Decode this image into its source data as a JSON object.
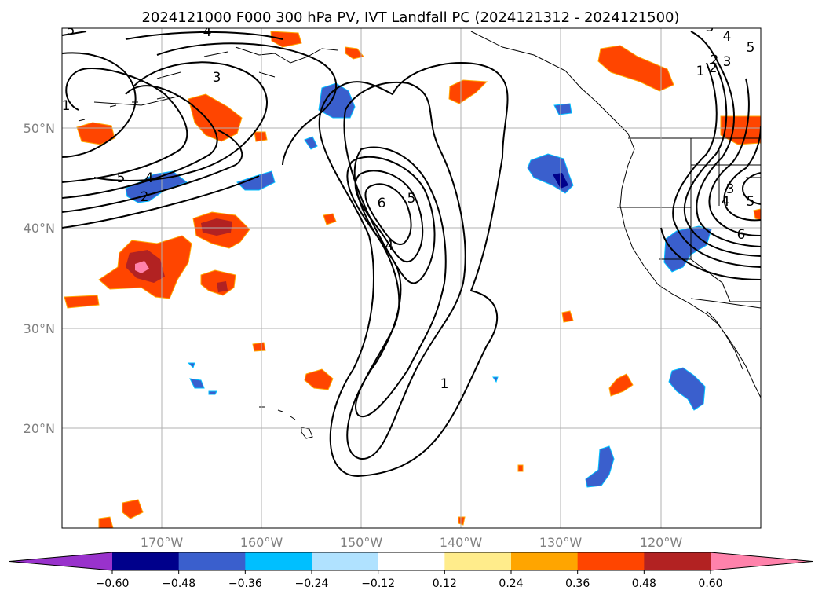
{
  "title": "2024121000 F000 300 hPa PV, IVT Landfall PC (2024121312 - 2024121500)",
  "chart_data": {
    "type": "map",
    "title": "2024121000 F000 300 hPa PV, IVT Landfall PC (2024121312 - 2024121500)",
    "projection": "plate carree",
    "xlim_deg": [
      -180,
      -110
    ],
    "ylim_deg": [
      10,
      60
    ],
    "lon_ticks": [
      -170,
      -160,
      -150,
      -140,
      -130,
      -120
    ],
    "lon_tick_labels": [
      "170°W",
      "160°W",
      "150°W",
      "140°W",
      "130°W",
      "120°W"
    ],
    "lat_ticks": [
      20,
      30,
      40,
      50
    ],
    "lat_tick_labels": [
      "20°N",
      "30°N",
      "40°N",
      "50°N"
    ],
    "grid": true,
    "colorbar": {
      "orientation": "horizontal",
      "extend": "both",
      "levels": [
        -0.6,
        -0.48,
        -0.36,
        -0.24,
        -0.12,
        0.12,
        0.24,
        0.36,
        0.48,
        0.6
      ],
      "tick_labels": [
        "−0.60",
        "−0.48",
        "−0.36",
        "−0.24",
        "−0.12",
        "0.12",
        "0.24",
        "0.36",
        "0.48",
        "0.60"
      ],
      "colors": [
        "#9932cc",
        "#00008b",
        "#3a5fcd",
        "#00bfff",
        "#b0e2ff",
        "#ffffff",
        "#ffec8b",
        "#ffa500",
        "#ff4500",
        "#b22222",
        "#ff82ab"
      ]
    },
    "contour_labels": [
      "5",
      "4",
      "3",
      "2",
      "1",
      "6",
      "5",
      "4",
      "3",
      "1",
      "5",
      "4",
      "2",
      "3",
      "4",
      "5",
      "6",
      "3",
      "2",
      "1",
      "5",
      "4"
    ],
    "fill_colors": {
      "strong_positive": "#ff4500",
      "positive_edge": "#ffa500",
      "very_positive": "#b22222",
      "peak_positive": "#ff82ab",
      "negative": "#3a5fcd",
      "negative_edge": "#00bfff",
      "strong_negative": "#00008b"
    }
  }
}
